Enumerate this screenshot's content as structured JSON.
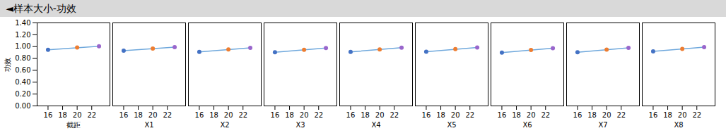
{
  "chart_data": {
    "type": "line",
    "title": "◄样本大小-功效",
    "ylabel": "功效",
    "xlim": [
      14.5,
      24.5
    ],
    "xticks": [
      16,
      18,
      20,
      22
    ],
    "ylim": [
      0.0,
      1.4
    ],
    "yticks": [
      {
        "value": 0.0,
        "label": "0.00"
      },
      {
        "value": 0.2,
        "label": "0.20"
      },
      {
        "value": 0.4,
        "label": "0.40"
      },
      {
        "value": 0.6,
        "label": "0.60"
      },
      {
        "value": 0.8,
        "label": "0.80"
      },
      {
        "value": 1.0,
        "label": "1.00"
      },
      {
        "value": 1.2,
        "label": "1.20"
      },
      {
        "value": 1.4,
        "label": "1.40"
      }
    ],
    "grid": false,
    "facets": [
      {
        "xlabel": "截距",
        "series": [
          {
            "type": "line",
            "color": "#6FA8DC",
            "x": [
              16,
              23
            ],
            "values": [
              0.945,
              1.005
            ]
          },
          {
            "type": "scatter",
            "colors": [
              "#4472C4",
              "#ED7D31",
              "#9966CC"
            ],
            "x": [
              16,
              20,
              23
            ],
            "values": [
              0.945,
              0.985,
              1.005
            ]
          }
        ]
      },
      {
        "xlabel": "X1",
        "series": [
          {
            "type": "line",
            "color": "#6FA8DC",
            "x": [
              16,
              23
            ],
            "values": [
              0.93,
              0.99
            ]
          },
          {
            "type": "scatter",
            "colors": [
              "#4472C4",
              "#ED7D31",
              "#9966CC"
            ],
            "x": [
              16,
              20,
              23
            ],
            "values": [
              0.93,
              0.968,
              0.99
            ]
          }
        ]
      },
      {
        "xlabel": "X2",
        "series": [
          {
            "type": "line",
            "color": "#6FA8DC",
            "x": [
              16,
              23
            ],
            "values": [
              0.91,
              0.98
            ]
          },
          {
            "type": "scatter",
            "colors": [
              "#4472C4",
              "#ED7D31",
              "#9966CC"
            ],
            "x": [
              16,
              20,
              23
            ],
            "values": [
              0.91,
              0.952,
              0.98
            ]
          }
        ]
      },
      {
        "xlabel": "X3",
        "series": [
          {
            "type": "line",
            "color": "#6FA8DC",
            "x": [
              16,
              23
            ],
            "values": [
              0.905,
              0.975
            ]
          },
          {
            "type": "scatter",
            "colors": [
              "#4472C4",
              "#ED7D31",
              "#9966CC"
            ],
            "x": [
              16,
              20,
              23
            ],
            "values": [
              0.905,
              0.947,
              0.975
            ]
          }
        ]
      },
      {
        "xlabel": "X4",
        "series": [
          {
            "type": "line",
            "color": "#6FA8DC",
            "x": [
              16,
              23
            ],
            "values": [
              0.91,
              0.982
            ]
          },
          {
            "type": "scatter",
            "colors": [
              "#4472C4",
              "#ED7D31",
              "#9966CC"
            ],
            "x": [
              16,
              20,
              23
            ],
            "values": [
              0.91,
              0.952,
              0.982
            ]
          }
        ]
      },
      {
        "xlabel": "X5",
        "series": [
          {
            "type": "line",
            "color": "#6FA8DC",
            "x": [
              16,
              23
            ],
            "values": [
              0.915,
              0.985
            ]
          },
          {
            "type": "scatter",
            "colors": [
              "#4472C4",
              "#ED7D31",
              "#9966CC"
            ],
            "x": [
              16,
              20,
              23
            ],
            "values": [
              0.915,
              0.957,
              0.985
            ]
          }
        ]
      },
      {
        "xlabel": "X6",
        "series": [
          {
            "type": "line",
            "color": "#6FA8DC",
            "x": [
              16,
              23
            ],
            "values": [
              0.9,
              0.972
            ]
          },
          {
            "type": "scatter",
            "colors": [
              "#4472C4",
              "#ED7D31",
              "#9966CC"
            ],
            "x": [
              16,
              20,
              23
            ],
            "values": [
              0.9,
              0.942,
              0.972
            ]
          }
        ]
      },
      {
        "xlabel": "X7",
        "series": [
          {
            "type": "line",
            "color": "#6FA8DC",
            "x": [
              16,
              23
            ],
            "values": [
              0.905,
              0.978
            ]
          },
          {
            "type": "scatter",
            "colors": [
              "#4472C4",
              "#ED7D31",
              "#9966CC"
            ],
            "x": [
              16,
              20,
              23
            ],
            "values": [
              0.905,
              0.948,
              0.978
            ]
          }
        ]
      },
      {
        "xlabel": "X8",
        "series": [
          {
            "type": "line",
            "color": "#6FA8DC",
            "x": [
              16,
              23
            ],
            "values": [
              0.92,
              0.992
            ]
          },
          {
            "type": "scatter",
            "colors": [
              "#4472C4",
              "#ED7D31",
              "#9966CC"
            ],
            "x": [
              16,
              20,
              23
            ],
            "values": [
              0.92,
              0.96,
              0.992
            ]
          }
        ]
      }
    ]
  }
}
